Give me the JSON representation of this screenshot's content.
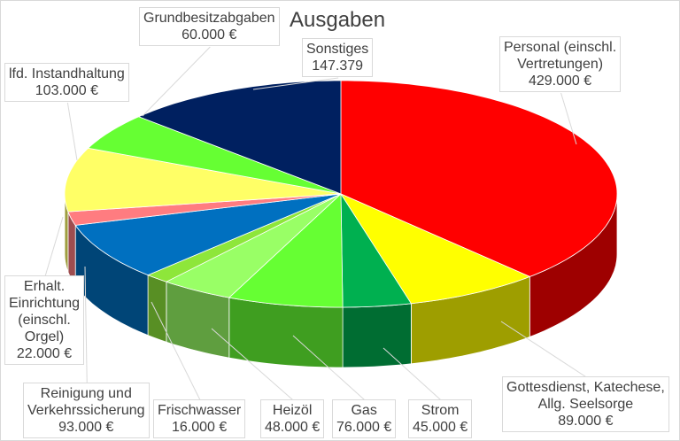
{
  "chart_data": {
    "type": "pie",
    "title": "Ausgaben",
    "three_d": true,
    "slices": [
      {
        "label": "Personal (einschl. Vertretungen)",
        "lines": [
          "Personal (einschl.",
          "Vertretungen)"
        ],
        "value": 429000,
        "value_label": "429.000 €",
        "color": "#ff0000"
      },
      {
        "label": "Gottesdienst, Katechese, Allg. Seelsorge",
        "lines": [
          "Gottesdienst, Katechese,",
          "Allg. Seelsorge"
        ],
        "value": 89000,
        "value_label": "89.000 €",
        "color": "#ffff00"
      },
      {
        "label": "Strom",
        "lines": [
          "Strom"
        ],
        "value": 45000,
        "value_label": "45.000 €",
        "color": "#00b050"
      },
      {
        "label": "Gas",
        "lines": [
          "Gas"
        ],
        "value": 76000,
        "value_label": "76.000 €",
        "color": "#66ff33"
      },
      {
        "label": "Heizöl",
        "lines": [
          "Heizöl"
        ],
        "value": 48000,
        "value_label": "48.000 €",
        "color": "#99ff66"
      },
      {
        "label": "Frischwasser",
        "lines": [
          "Frischwasser"
        ],
        "value": 16000,
        "value_label": "16.000 €",
        "color": "#8ee63a"
      },
      {
        "label": "Reinigung und Verkehrssicherung",
        "lines": [
          "Reinigung und",
          "Verkehrssicherung"
        ],
        "value": 93000,
        "value_label": "93.000 €",
        "color": "#0070c0"
      },
      {
        "label": "Erhalt. Einrichtung (einschl. Orgel)",
        "lines": [
          "Erhalt.",
          "Einrichtung",
          "(einschl.",
          "Orgel)"
        ],
        "value": 22000,
        "value_label": "22.000 €",
        "color": "#ff7c80"
      },
      {
        "label": "lfd. Instandhaltung",
        "lines": [
          "lfd. Instandhaltung"
        ],
        "value": 103000,
        "value_label": "103.000 €",
        "color": "#ffff66"
      },
      {
        "label": "Grundbesitzabgaben",
        "lines": [
          "Grundbesitzabgaben"
        ],
        "value": 60000,
        "value_label": "60.000 €",
        "color": "#66ff33"
      },
      {
        "label": "Sonstiges",
        "lines": [
          "Sonstiges"
        ],
        "value": 147379,
        "value_label": "147.379",
        "color": "#002060"
      }
    ]
  }
}
